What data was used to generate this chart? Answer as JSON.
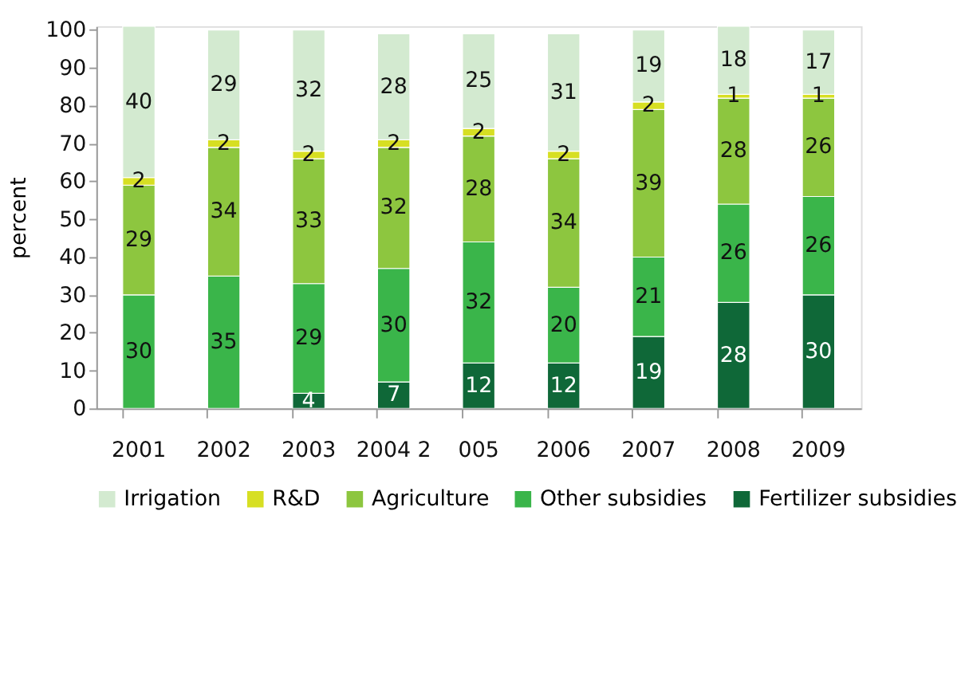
{
  "chart_data": {
    "type": "bar",
    "stacked": true,
    "ylabel": "percent",
    "categories": [
      "2001",
      "2002",
      "2003",
      "2004 2",
      "005",
      "2006",
      "2007",
      "2008",
      "2009"
    ],
    "ylim": [
      0,
      101
    ],
    "yticks": [
      0,
      10,
      20,
      30,
      40,
      50,
      60,
      70,
      80,
      90,
      100
    ],
    "grid": false,
    "legend": "bottom",
    "series": [
      {
        "name": "Fertilizer subsidies",
        "color": "#0f6838",
        "values": [
          0,
          0,
          4,
          7,
          12,
          12,
          19,
          28,
          30
        ],
        "value_labels": [
          null,
          null,
          "4",
          "7",
          "12",
          "12",
          "19",
          "28",
          "30"
        ]
      },
      {
        "name": "Other subsidies",
        "color": "#3ab54a",
        "values": [
          30,
          35,
          29,
          30,
          32,
          20,
          21,
          26,
          26
        ],
        "value_labels": [
          "30",
          "35",
          "29",
          "30",
          "32",
          "20",
          "21",
          "26",
          "26"
        ]
      },
      {
        "name": "Agriculture",
        "color": "#8dc63f",
        "values": [
          29,
          34,
          33,
          32,
          28,
          34,
          39,
          28,
          26
        ],
        "value_labels": [
          "29",
          "34",
          "33",
          "32",
          "28",
          "34",
          "39",
          "28",
          "26"
        ]
      },
      {
        "name": "R&D",
        "color": "#d7df23",
        "values": [
          2,
          2,
          2,
          2,
          2,
          2,
          2,
          1,
          1
        ],
        "value_labels": [
          "2",
          "2",
          "2",
          "2",
          "2",
          "2",
          "2",
          "1",
          "1"
        ]
      },
      {
        "name": "Irrigation",
        "color": "#d3ead0",
        "values": [
          40,
          29,
          32,
          28,
          25,
          31,
          19,
          18,
          17
        ],
        "value_labels": [
          "40",
          "29",
          "32",
          "28",
          "25",
          "31",
          "19",
          "18",
          "17"
        ]
      }
    ]
  }
}
